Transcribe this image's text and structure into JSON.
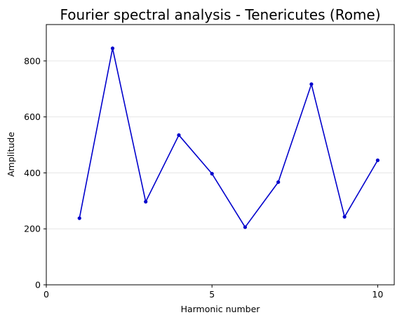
{
  "chart_data": {
    "type": "line",
    "title": "Fourier spectral analysis - Tenericutes (Rome)",
    "xlabel": "Harmonic number",
    "ylabel": "Amplitude",
    "xlim": [
      0,
      10.5
    ],
    "ylim": [
      0,
      930
    ],
    "xticks": [
      0,
      5,
      10
    ],
    "yticks": [
      0,
      200,
      400,
      600,
      800
    ],
    "grid": "horizontal",
    "line_color": "#0000cc",
    "series": [
      {
        "x": [
          1,
          2,
          3,
          4,
          5,
          6,
          7,
          8,
          9,
          10
        ],
        "values": [
          238,
          845,
          297,
          535,
          397,
          206,
          367,
          717,
          243,
          445
        ]
      }
    ]
  }
}
